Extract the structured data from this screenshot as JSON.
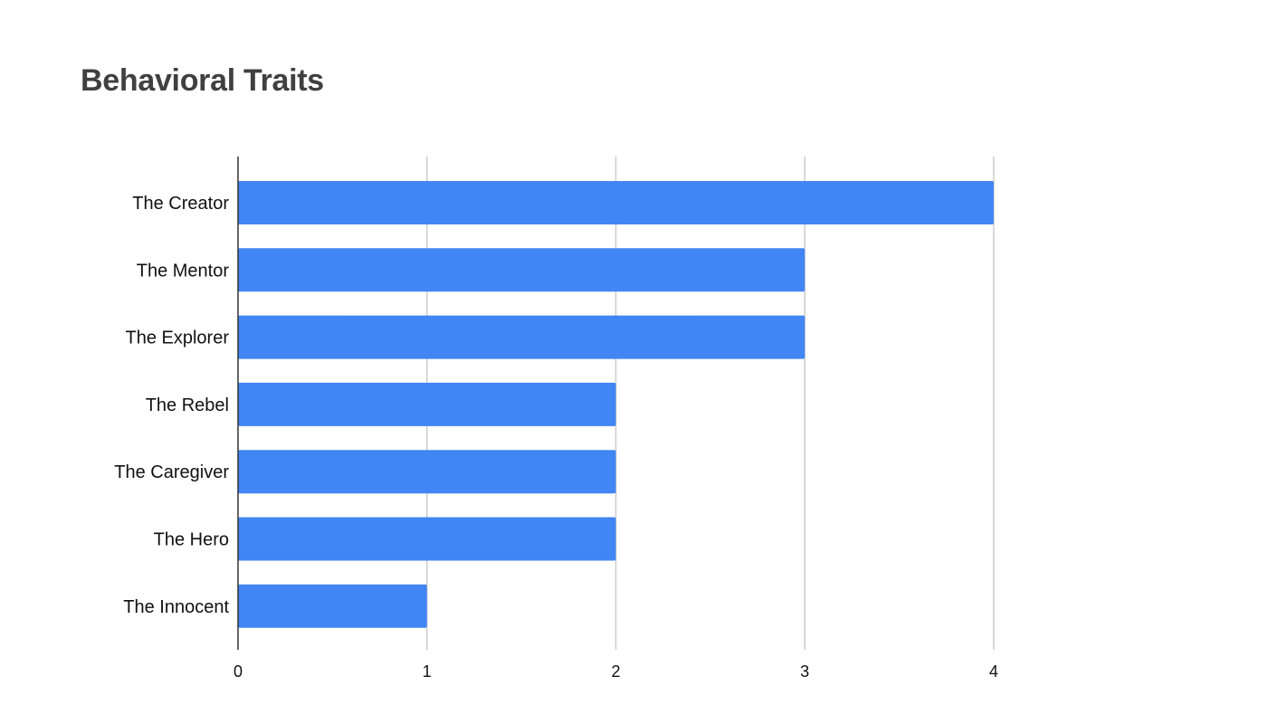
{
  "chart_data": {
    "type": "bar",
    "orientation": "horizontal",
    "title": "Behavioral Traits",
    "xlabel": "",
    "ylabel": "",
    "categories": [
      "The Creator",
      "The Mentor",
      "The Explorer",
      "The Rebel",
      "The Caregiver",
      "The Hero",
      "The Innocent"
    ],
    "values": [
      4,
      3,
      3,
      2,
      2,
      2,
      1
    ],
    "xlim": [
      0,
      4
    ],
    "x_ticks": [
      "0",
      "1",
      "2",
      "3",
      "4"
    ],
    "grid": true,
    "legend": "none",
    "colors": {
      "bar": "#4285f4",
      "grid": "#cccccc",
      "axis": "#333333",
      "title": "#404040"
    }
  }
}
